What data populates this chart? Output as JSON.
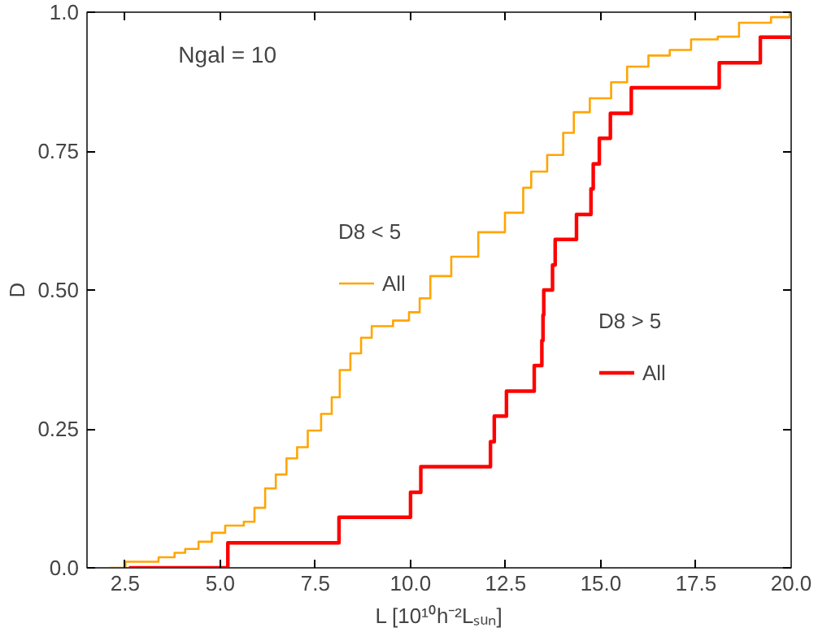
{
  "chart_data": {
    "type": "step",
    "xlabel": "L [10¹⁰h⁻²Lₛᵤₙ]",
    "ylabel": "D",
    "annotations": [
      "Ngal = 10",
      "D8 < 5",
      "D8 > 5"
    ],
    "xlim": [
      1.5,
      20
    ],
    "ylim": [
      0,
      1
    ],
    "xticks": [
      2.5,
      {
        "value": 5,
        "label": "5.0"
      },
      7.5,
      {
        "value": 10,
        "label": "10.0"
      },
      12.5,
      {
        "value": 15,
        "label": "15.0"
      },
      17.5,
      {
        "value": 20,
        "label": "20.0"
      }
    ],
    "yticks": [
      {
        "value": 0,
        "label": "0.0"
      },
      0.25,
      {
        "value": 0.5,
        "label": "0.50"
      },
      0.75,
      {
        "value": 1,
        "label": "1.0"
      }
    ],
    "grid": false,
    "legend": "center",
    "marker": "none",
    "line_style": "solid",
    "series": [
      {
        "name": "All",
        "color": "#ffa500",
        "x": [
          2.09,
          2.51,
          3.38,
          3.8,
          4.08,
          4.43,
          4.78,
          5.13,
          5.62,
          5.9,
          6.18,
          6.46,
          6.74,
          7.02,
          7.3,
          7.65,
          7.93,
          8.14,
          8.42,
          8.7,
          8.98,
          9.54,
          9.96,
          10.24,
          10.52,
          11.07,
          11.78,
          12.48,
          12.96,
          13.17,
          13.59,
          14.01,
          14.29,
          14.71,
          15.27,
          15.69,
          16.25,
          16.81,
          17.37,
          18.07,
          18.63,
          19.47,
          19.96
        ],
        "values": [
          0,
          0.011,
          0.019,
          0.027,
          0.034,
          0.047,
          0.063,
          0.076,
          0.083,
          0.108,
          0.143,
          0.168,
          0.197,
          0.217,
          0.247,
          0.277,
          0.307,
          0.356,
          0.386,
          0.414,
          0.435,
          0.445,
          0.46,
          0.485,
          0.525,
          0.56,
          0.604,
          0.639,
          0.684,
          0.713,
          0.743,
          0.783,
          0.82,
          0.845,
          0.874,
          0.902,
          0.922,
          0.932,
          0.951,
          0.956,
          0.981,
          0.991,
          1.0
        ]
      },
      {
        "name": "All",
        "color": "#ff0000",
        "x": [
          2.6,
          5.2,
          8.12,
          10.0,
          10.27,
          12.1,
          12.2,
          12.52,
          13.25,
          13.45,
          13.48,
          13.5,
          13.73,
          13.8,
          14.36,
          14.74,
          14.8,
          14.96,
          15.25,
          15.8,
          18.11,
          19.19,
          20
        ],
        "values": [
          0,
          0.045,
          0.091,
          0.136,
          0.182,
          0.227,
          0.273,
          0.318,
          0.364,
          0.409,
          0.455,
          0.5,
          0.545,
          0.591,
          0.636,
          0.682,
          0.727,
          0.773,
          0.818,
          0.864,
          0.909,
          0.955,
          0.955
        ]
      }
    ]
  }
}
